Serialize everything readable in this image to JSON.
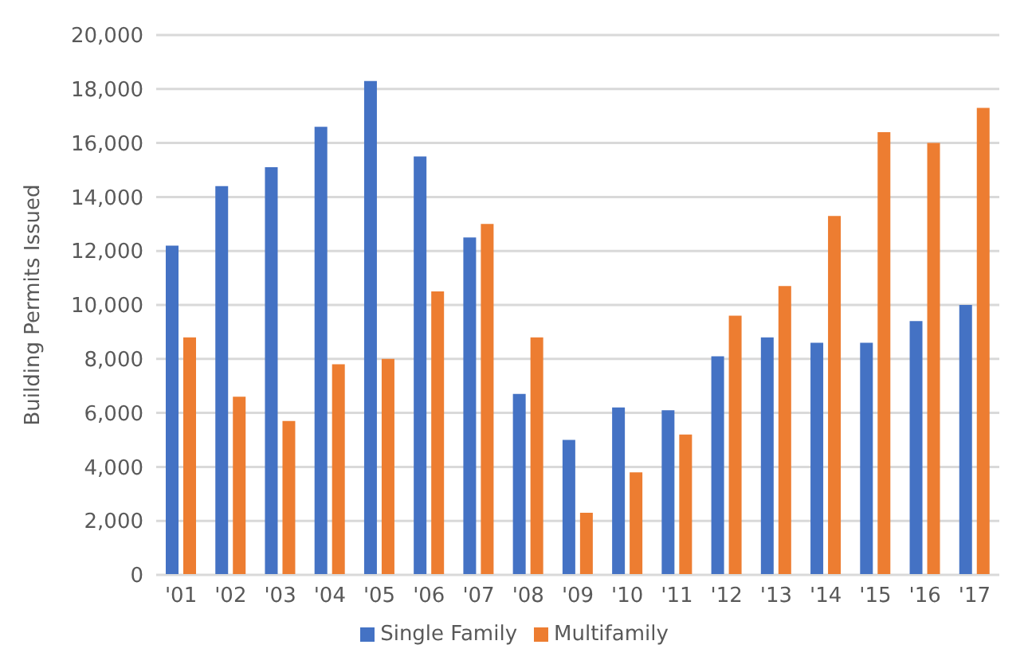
{
  "chart_data": {
    "type": "bar",
    "ylabel": "Building Permits Issued",
    "categories": [
      "'01",
      "'02",
      "'03",
      "'04",
      "'05",
      "'06",
      "'07",
      "'08",
      "'09",
      "'10",
      "'11",
      "'12",
      "'13",
      "'14",
      "'15",
      "'16",
      "'17"
    ],
    "series": [
      {
        "name": "Single Family",
        "color": "#4472c4",
        "values": [
          12200,
          14400,
          15100,
          16600,
          18300,
          15500,
          12500,
          6700,
          5000,
          6200,
          6100,
          8100,
          8800,
          8600,
          8600,
          9400,
          10000
        ]
      },
      {
        "name": "Multifamily",
        "color": "#ed7d31",
        "values": [
          8800,
          6600,
          5700,
          7800,
          8000,
          10500,
          13000,
          8800,
          2300,
          3800,
          5200,
          9600,
          10700,
          13300,
          16400,
          16000,
          17300
        ]
      }
    ],
    "ylim": [
      0,
      20000
    ],
    "yticks": [
      0,
      {
        "value": 2000,
        "label": "2,000"
      },
      {
        "value": 4000,
        "label": "4,000"
      },
      {
        "value": 6000,
        "label": "6,000"
      },
      {
        "value": 8000,
        "label": "8,000"
      },
      {
        "value": 10000,
        "label": "10,000"
      },
      {
        "value": 12000,
        "label": "12,000"
      },
      {
        "value": 14000,
        "label": "14,000"
      },
      {
        "value": 16000,
        "label": "16,000"
      },
      {
        "value": 18000,
        "label": "18,000"
      },
      {
        "value": 20000,
        "label": "20,000"
      }
    ],
    "grid": "y",
    "legend": "bottom"
  }
}
